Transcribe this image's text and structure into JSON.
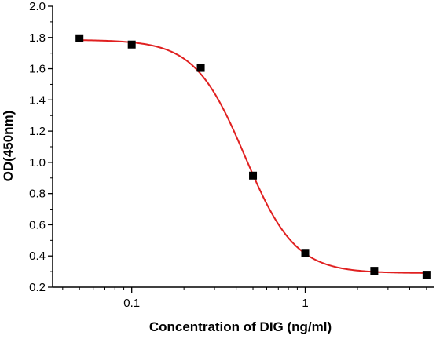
{
  "chart_data": {
    "type": "scatter",
    "xlabel": "Concentration of DIG (ng/ml)",
    "ylabel": "OD(450nm)",
    "x_scale": "log",
    "xlim": [
      0.035,
      5.5
    ],
    "ylim": [
      0.2,
      2.0
    ],
    "x_ticks": [
      {
        "value": 0.1,
        "label": "0.1"
      },
      {
        "value": 1,
        "label": "1"
      }
    ],
    "y_ticks": [
      {
        "value": 0.2,
        "label": "0.2"
      },
      {
        "value": 0.4,
        "label": "0.4"
      },
      {
        "value": 0.6,
        "label": "0.6"
      },
      {
        "value": 0.8,
        "label": "0.8"
      },
      {
        "value": 1.0,
        "label": "1.0"
      },
      {
        "value": 1.2,
        "label": "1.2"
      },
      {
        "value": 1.4,
        "label": "1.4"
      },
      {
        "value": 1.6,
        "label": "1.6"
      },
      {
        "value": 1.8,
        "label": "1.8"
      },
      {
        "value": 2.0,
        "label": "2.0"
      }
    ],
    "grid": false,
    "legend": "none",
    "series": [
      {
        "kind": "points",
        "marker": "square",
        "color": "#000000",
        "x": [
          0.05,
          0.1,
          0.25,
          0.5,
          1.0,
          2.5,
          5.0
        ],
        "y": [
          1.795,
          1.755,
          1.605,
          0.915,
          0.42,
          0.305,
          0.28
        ]
      },
      {
        "kind": "fit",
        "color": "#e02020",
        "fit": "four-parameter logistic",
        "top": 1.785,
        "bottom": 0.29,
        "ec50": 0.45,
        "hill": 3.0
      }
    ]
  }
}
